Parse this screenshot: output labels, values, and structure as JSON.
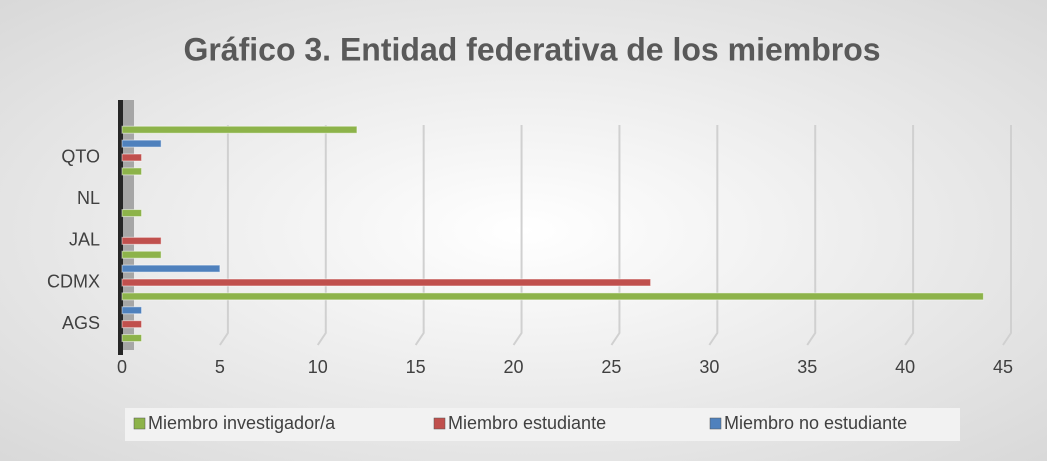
{
  "chart_data": {
    "type": "hbar",
    "title": "Gráfico 3. Entidad federativa de los miembros",
    "categories": [
      "AGS",
      "CDMX",
      "JAL",
      "NL",
      "QTO",
      null
    ],
    "series": [
      {
        "name": "Miembro investigador/a",
        "color": "#8db34a",
        "values": [
          1,
          44,
          2,
          1,
          1,
          12
        ]
      },
      {
        "name": "Miembro estudiante",
        "color": "#c0504d",
        "values": [
          1,
          27,
          2,
          0,
          1,
          0
        ]
      },
      {
        "name": "Miembro no estudiante",
        "color": "#4f81bd",
        "values": [
          1,
          5,
          0,
          0,
          2,
          0
        ]
      }
    ],
    "xlim": [
      0,
      45
    ],
    "xticks": [
      0,
      5,
      10,
      15,
      20,
      25,
      30,
      35,
      40,
      45
    ],
    "grid": true,
    "legend": "bottom"
  }
}
